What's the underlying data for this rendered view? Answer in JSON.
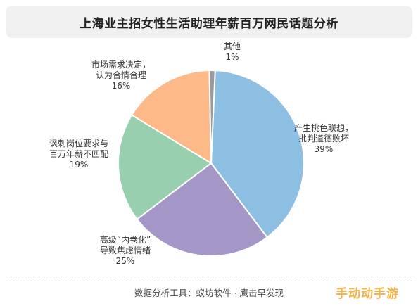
{
  "chart_data": {
    "type": "pie",
    "title": "上海业主招女性生活助理年薪百万网民话题分析",
    "slices": [
      {
        "label": [
          "产生桃色联想，",
          "批判道德败坏"
        ],
        "percent_label": "39%",
        "value": 39,
        "color": "#8dbfe3"
      },
      {
        "label": [
          "高级“内卷化”",
          "导致焦虑情绪"
        ],
        "percent_label": "25%",
        "value": 25,
        "color": "#a497c8"
      },
      {
        "label": [
          "讽刺岗位要求与",
          "百万年薪不匹配"
        ],
        "percent_label": "19%",
        "value": 19,
        "color": "#98cfae"
      },
      {
        "label": [
          "市场需求决定，",
          "认为合情合理"
        ],
        "percent_label": "16%",
        "value": 16,
        "color": "#fdb987"
      },
      {
        "label": [
          "其他"
        ],
        "percent_label": "1%",
        "value": 1,
        "color": "#9a9a9a"
      }
    ]
  },
  "footer": {
    "source": "数据分析工具：蚁坊软件 · 鹰击早发现",
    "watermark": "手动动手游"
  }
}
